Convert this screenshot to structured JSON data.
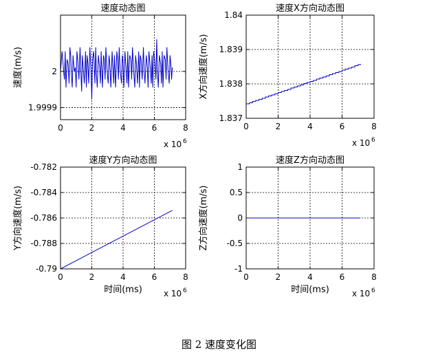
{
  "figure": {
    "caption": "图 2  速度变化图"
  },
  "chart_data": [
    {
      "type": "line",
      "title": "速度动态图",
      "xlabel": "",
      "ylabel": "速度(m/s)",
      "x_multiplier_label": "x 10",
      "x_multiplier_exp": "6",
      "xlim": [
        0,
        8
      ],
      "ylim": [
        1.99988,
        2.00014
      ],
      "xticks": [
        "0",
        "2",
        "4",
        "6",
        "8"
      ],
      "yticks": [
        {
          "v": 1.99991,
          "label": "1.9999"
        },
        {
          "v": 2.0,
          "label": "2"
        }
      ],
      "grid": true,
      "color": "#0000cc",
      "x": [
        0.0,
        0.1,
        0.18,
        0.25,
        0.3,
        0.35,
        0.42,
        0.48,
        0.55,
        0.6,
        0.65,
        0.7,
        0.75,
        0.8,
        0.88,
        0.95,
        1.0,
        1.05,
        1.1,
        1.18,
        1.25,
        1.3,
        1.35,
        1.4,
        1.45,
        1.52,
        1.6,
        1.65,
        1.7,
        1.75,
        1.8,
        1.88,
        1.95,
        2.0,
        2.05,
        2.12,
        2.2,
        2.25,
        2.3,
        2.35,
        2.42,
        2.5,
        2.55,
        2.6,
        2.68,
        2.75,
        2.8,
        2.85,
        2.9,
        2.98,
        3.05,
        3.1,
        3.15,
        3.22,
        3.3,
        3.35,
        3.4,
        3.45,
        3.52,
        3.6,
        3.65,
        3.7,
        3.75,
        3.82,
        3.9,
        3.95,
        4.0,
        4.05,
        4.12,
        4.2,
        4.25,
        4.3,
        4.35,
        4.42,
        4.5,
        4.55,
        4.6,
        4.68,
        4.75,
        4.8,
        4.85,
        4.92,
        5.0,
        5.05,
        5.1,
        5.15,
        5.22,
        5.3,
        5.35,
        5.4,
        5.48,
        5.55,
        5.6,
        5.65,
        5.72,
        5.8,
        5.85,
        5.9,
        5.95,
        6.02,
        6.1,
        6.15,
        6.2,
        6.25,
        6.32,
        6.4,
        6.45,
        6.5,
        6.55,
        6.62,
        6.7,
        6.75,
        6.8,
        6.88,
        6.95,
        7.0,
        7.05,
        7.1,
        7.15
      ],
      "y": [
        2.0,
        2.00005,
        2.00001,
        1.99998,
        2.00005,
        1.99996,
        2.00003,
        2.00002,
        1.99997,
        2.00006,
        2.00004,
        1.99999,
        1.99996,
        2.00004,
        2.0,
        2.00001,
        1.99996,
        2.00005,
        2.00003,
        1.99998,
        2.00006,
        2.0,
        1.99995,
        2.00004,
        2.00001,
        1.99997,
        2.00005,
        1.99996,
        2.00004,
        2.00002,
        1.99997,
        2.00006,
        2.0,
        1.99993,
        2.00003,
        2.00005,
        1.99997,
        2.00006,
        1.99999,
        1.99996,
        2.00004,
        2.00001,
        1.99997,
        2.00005,
        1.99996,
        2.00004,
        2.00003,
        1.99998,
        2.00006,
        2.0,
        1.99997,
        2.00004,
        2.00002,
        1.99996,
        2.00005,
        2.00001,
        1.99997,
        2.00004,
        1.99996,
        2.00005,
        2.00003,
        1.99998,
        2.00006,
        2.0,
        1.99997,
        2.00004,
        2.00002,
        1.99996,
        2.00005,
        2.0,
        1.99997,
        2.00005,
        1.99996,
        2.00004,
        2.00003,
        1.99998,
        2.00006,
        2.0,
        1.99996,
        2.00004,
        2.00002,
        1.99997,
        2.00005,
        1.99996,
        2.00004,
        2.00003,
        1.99998,
        2.00006,
        2.0,
        1.99997,
        2.00004,
        2.00001,
        1.99996,
        2.00005,
        2.00002,
        1.99997,
        2.00004,
        1.99996,
        2.00005,
        2.00003,
        1.99998,
        2.00008,
        2.0,
        1.99996,
        2.00004,
        2.00002,
        1.99997,
        2.00005,
        1.99996,
        2.00004,
        2.00003,
        1.99998,
        2.00006,
        2.0,
        1.99997,
        2.00004,
        2.00002,
        1.99998,
        2.00001
      ]
    },
    {
      "type": "line",
      "title": "速度X方向动态图",
      "xlabel": "",
      "ylabel": "X方向速度(m/s)",
      "x_multiplier_label": "x 10",
      "x_multiplier_exp": "6",
      "xlim": [
        0,
        8
      ],
      "ylim": [
        1.837,
        1.84
      ],
      "xticks": [
        "0",
        "2",
        "4",
        "6",
        "8"
      ],
      "yticks": [
        {
          "v": 1.837,
          "label": "1.837"
        },
        {
          "v": 1.838,
          "label": "1.838"
        },
        {
          "v": 1.839,
          "label": "1.839"
        },
        {
          "v": 1.84,
          "label": "1.84"
        }
      ],
      "grid": true,
      "color": "#0000cc",
      "step": true,
      "x": [
        0.0,
        0.2,
        0.4,
        0.6,
        0.8,
        1.0,
        1.2,
        1.4,
        1.6,
        1.8,
        2.0,
        2.2,
        2.4,
        2.6,
        2.8,
        3.0,
        3.2,
        3.4,
        3.6,
        3.8,
        4.0,
        4.2,
        4.4,
        4.6,
        4.8,
        5.0,
        5.2,
        5.4,
        5.6,
        5.8,
        6.0,
        6.2,
        6.4,
        6.6,
        6.8,
        7.0,
        7.15
      ],
      "y": [
        1.83742,
        1.83745,
        1.83749,
        1.83752,
        1.83755,
        1.83758,
        1.83762,
        1.83765,
        1.83768,
        1.83771,
        1.83775,
        1.83778,
        1.83781,
        1.83784,
        1.83788,
        1.83791,
        1.83794,
        1.83797,
        1.83801,
        1.83804,
        1.83807,
        1.8381,
        1.83814,
        1.83817,
        1.8382,
        1.83823,
        1.83827,
        1.8383,
        1.83833,
        1.83836,
        1.8384,
        1.83843,
        1.83846,
        1.83849,
        1.83853,
        1.83856,
        1.83858
      ]
    },
    {
      "type": "line",
      "title": "速度Y方向动态图",
      "xlabel": "时间(ms)",
      "ylabel": "Y方向速度(m/s)",
      "x_multiplier_label": "x 10",
      "x_multiplier_exp": "6",
      "xlim": [
        0,
        8
      ],
      "ylim": [
        -0.79,
        -0.782
      ],
      "xticks": [
        "0",
        "2",
        "4",
        "6",
        "8"
      ],
      "yticks": [
        {
          "v": -0.79,
          "label": "-0.79"
        },
        {
          "v": -0.788,
          "label": "-0.788"
        },
        {
          "v": -0.786,
          "label": "-0.786"
        },
        {
          "v": -0.784,
          "label": "-0.784"
        },
        {
          "v": -0.782,
          "label": "-0.782"
        }
      ],
      "grid": true,
      "color": "#0000cc",
      "x": [
        0.0,
        7.15
      ],
      "y": [
        -0.79,
        -0.7854
      ]
    },
    {
      "type": "line",
      "title": "速度Z方向动态图",
      "xlabel": "时间(ms)",
      "ylabel": "Z方向速度(m/s)",
      "x_multiplier_label": "x 10",
      "x_multiplier_exp": "6",
      "xlim": [
        0,
        8
      ],
      "ylim": [
        -1,
        1
      ],
      "xticks": [
        "0",
        "2",
        "4",
        "6",
        "8"
      ],
      "yticks": [
        {
          "v": -1,
          "label": "-1"
        },
        {
          "v": -0.5,
          "label": "-0.5"
        },
        {
          "v": 0,
          "label": "0"
        },
        {
          "v": 0.5,
          "label": "0.5"
        },
        {
          "v": 1,
          "label": "1"
        }
      ],
      "grid": true,
      "color": "#0000cc",
      "x": [
        0.0,
        7.15
      ],
      "y": [
        0,
        0
      ]
    }
  ]
}
